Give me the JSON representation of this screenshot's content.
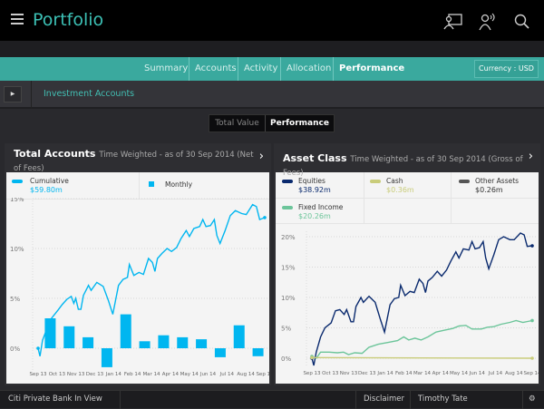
{
  "header": {
    "title": "Portfolio",
    "icons": [
      "menu-icon",
      "presentation-icon",
      "advisor-contact-icon",
      "search-icon"
    ]
  },
  "nav": {
    "tabs": [
      "Summary",
      "Accounts",
      "Activity",
      "Allocation",
      "Performance"
    ],
    "active": "Performance",
    "currency": "Currency : USD"
  },
  "accounts_bar": {
    "title": "Investment Accounts"
  },
  "view_toggle": {
    "options": [
      "Total Value",
      "Performance"
    ],
    "active": "Performance"
  },
  "colors": {
    "accent": "#3aa99e",
    "cumulative": "#00b6f0",
    "equities": "#0a2a6e",
    "cash": "#c9cc7a",
    "other": "#555555",
    "fixed_income": "#6cc59a"
  },
  "total_accounts": {
    "title": "Total Accounts",
    "subtitle": "Time Weighted - as of 30 Sep 2014 (Net of Fees)",
    "legend": [
      {
        "label": "Cumulative",
        "value": "$59.80m"
      },
      {
        "label": "Monthly"
      }
    ]
  },
  "asset_class": {
    "title": "Asset Class",
    "subtitle": "Time Weighted - as of 30 Sep 2014 (Gross of Fees)",
    "legend": [
      {
        "label": "Equities",
        "value": "$38.92m"
      },
      {
        "label": "Cash",
        "value": "$0.36m"
      },
      {
        "label": "Other Assets",
        "value": "$0.26m"
      },
      {
        "label": "Fixed Income",
        "value": "$20.26m"
      }
    ]
  },
  "chart_data": [
    {
      "type": "line+bar",
      "ylim": [
        -2.5,
        15.5
      ],
      "yticks": [
        "0%",
        "5%",
        "10%",
        "15%"
      ],
      "ytick_values": [
        0,
        5,
        10,
        15
      ],
      "grid": true,
      "xticks": [
        "Sep 13",
        "Oct 13",
        "Nov 13",
        "Dec 13",
        "Jan 14",
        "Feb 14",
        "Mar 14",
        "Apr 14",
        "May 14",
        "Jun 14",
        "Jul 14",
        "Aug 14",
        "Sep 14"
      ],
      "bars": {
        "name": "Monthly",
        "values": [
          3.0,
          2.2,
          1.1,
          -1.9,
          3.4,
          0.7,
          1.3,
          1.1,
          0.9,
          -0.9,
          2.3,
          -0.8
        ]
      },
      "series": [
        {
          "name": "Cumulative",
          "points": [
            [
              "2013-09-30",
              0
            ],
            [
              "2013-10-03",
              -0.8
            ],
            [
              "2013-10-07",
              0.8
            ],
            [
              "2013-10-14",
              2.0
            ],
            [
              "2013-10-21",
              3.0
            ],
            [
              "2013-10-31",
              3.8
            ],
            [
              "2013-11-07",
              4.4
            ],
            [
              "2013-11-14",
              4.9
            ],
            [
              "2013-11-21",
              5.2
            ],
            [
              "2013-11-25",
              4.5
            ],
            [
              "2013-11-28",
              5.0
            ],
            [
              "2013-12-02",
              3.9
            ],
            [
              "2013-12-06",
              3.9
            ],
            [
              "2013-12-10",
              5.3
            ],
            [
              "2013-12-18",
              6.3
            ],
            [
              "2013-12-22",
              5.8
            ],
            [
              "2013-12-31",
              6.6
            ],
            [
              "2014-01-10",
              6.2
            ],
            [
              "2014-01-18",
              4.8
            ],
            [
              "2014-01-25",
              3.4
            ],
            [
              "2014-02-03",
              6.3
            ],
            [
              "2014-02-10",
              6.9
            ],
            [
              "2014-02-17",
              7.1
            ],
            [
              "2014-02-20",
              8.4
            ],
            [
              "2014-02-27",
              7.3
            ],
            [
              "2014-03-07",
              7.6
            ],
            [
              "2014-03-14",
              7.4
            ],
            [
              "2014-03-22",
              9.0
            ],
            [
              "2014-03-28",
              8.6
            ],
            [
              "2014-04-01",
              7.7
            ],
            [
              "2014-04-05",
              9.0
            ],
            [
              "2014-04-12",
              9.5
            ],
            [
              "2014-04-20",
              10.0
            ],
            [
              "2014-04-27",
              9.7
            ],
            [
              "2014-05-05",
              10.1
            ],
            [
              "2014-05-12",
              11.0
            ],
            [
              "2014-05-20",
              11.8
            ],
            [
              "2014-05-25",
              11.2
            ],
            [
              "2014-06-01",
              12.0
            ],
            [
              "2014-06-10",
              12.2
            ],
            [
              "2014-06-15",
              12.9
            ],
            [
              "2014-06-20",
              12.2
            ],
            [
              "2014-06-27",
              12.3
            ],
            [
              "2014-07-03",
              12.9
            ],
            [
              "2014-07-07",
              11.3
            ],
            [
              "2014-07-12",
              10.5
            ],
            [
              "2014-07-20",
              11.8
            ],
            [
              "2014-07-28",
              13.3
            ],
            [
              "2014-08-05",
              13.8
            ],
            [
              "2014-08-15",
              13.5
            ],
            [
              "2014-08-22",
              13.4
            ],
            [
              "2014-09-01",
              14.4
            ],
            [
              "2014-09-07",
              14.2
            ],
            [
              "2014-09-12",
              12.9
            ],
            [
              "2014-09-20",
              13.1
            ]
          ]
        }
      ]
    },
    {
      "type": "line",
      "ylim": [
        -2,
        22
      ],
      "yticks": [
        "0%",
        "5%",
        "10%",
        "15%",
        "20%"
      ],
      "ytick_values": [
        0,
        5,
        10,
        15,
        20
      ],
      "grid": true,
      "xticks": [
        "Sep 13",
        "Oct 13",
        "Nov 13",
        "Dec 13",
        "Jan 14",
        "Feb 14",
        "Mar 14",
        "Apr 14",
        "May 14",
        "Jun 14",
        "Jul 14",
        "Aug 14",
        "Sep 14"
      ],
      "series": [
        {
          "name": "Equities",
          "points": [
            [
              "2013-09-30",
              0
            ],
            [
              "2013-10-03",
              -1.2
            ],
            [
              "2013-10-07",
              1.0
            ],
            [
              "2013-10-14",
              3.5
            ],
            [
              "2013-10-21",
              5.0
            ],
            [
              "2013-10-31",
              5.8
            ],
            [
              "2013-11-07",
              7.8
            ],
            [
              "2013-11-14",
              8.0
            ],
            [
              "2013-11-21",
              7.2
            ],
            [
              "2013-11-25",
              8.0
            ],
            [
              "2013-12-02",
              6.0
            ],
            [
              "2013-12-06",
              6.0
            ],
            [
              "2013-12-10",
              8.5
            ],
            [
              "2013-12-18",
              10.0
            ],
            [
              "2013-12-22",
              9.2
            ],
            [
              "2013-12-31",
              10.2
            ],
            [
              "2014-01-10",
              9.2
            ],
            [
              "2014-01-18",
              6.5
            ],
            [
              "2014-01-25",
              4.3
            ],
            [
              "2014-02-03",
              8.8
            ],
            [
              "2014-02-10",
              9.8
            ],
            [
              "2014-02-17",
              10.0
            ],
            [
              "2014-02-20",
              12.0
            ],
            [
              "2014-02-27",
              10.3
            ],
            [
              "2014-03-07",
              11.0
            ],
            [
              "2014-03-14",
              10.8
            ],
            [
              "2014-03-22",
              13.0
            ],
            [
              "2014-03-28",
              12.3
            ],
            [
              "2014-04-01",
              10.8
            ],
            [
              "2014-04-05",
              12.7
            ],
            [
              "2014-04-12",
              13.3
            ],
            [
              "2014-04-20",
              14.3
            ],
            [
              "2014-04-27",
              13.5
            ],
            [
              "2014-05-05",
              14.5
            ],
            [
              "2014-05-12",
              16.0
            ],
            [
              "2014-05-20",
              17.5
            ],
            [
              "2014-05-25",
              16.5
            ],
            [
              "2014-06-01",
              18.0
            ],
            [
              "2014-06-10",
              17.8
            ],
            [
              "2014-06-15",
              19.2
            ],
            [
              "2014-06-20",
              18.0
            ],
            [
              "2014-06-27",
              18.2
            ],
            [
              "2014-07-03",
              19.2
            ],
            [
              "2014-07-07",
              16.5
            ],
            [
              "2014-07-12",
              14.7
            ],
            [
              "2014-07-20",
              17.0
            ],
            [
              "2014-07-28",
              19.5
            ],
            [
              "2014-08-05",
              20.0
            ],
            [
              "2014-08-15",
              19.5
            ],
            [
              "2014-08-22",
              19.5
            ],
            [
              "2014-09-01",
              20.6
            ],
            [
              "2014-09-07",
              20.3
            ],
            [
              "2014-09-12",
              18.4
            ],
            [
              "2014-09-20",
              18.5
            ]
          ]
        },
        {
          "name": "Fixed Income",
          "points": [
            [
              "2013-09-30",
              0.3
            ],
            [
              "2013-10-07",
              0
            ],
            [
              "2013-10-14",
              1.0
            ],
            [
              "2013-10-28",
              1.0
            ],
            [
              "2013-11-10",
              0.9
            ],
            [
              "2013-11-20",
              1.0
            ],
            [
              "2013-11-28",
              0.6
            ],
            [
              "2013-12-08",
              0.9
            ],
            [
              "2013-12-20",
              0.8
            ],
            [
              "2013-12-31",
              1.8
            ],
            [
              "2014-01-15",
              2.3
            ],
            [
              "2014-01-31",
              2.6
            ],
            [
              "2014-02-15",
              2.9
            ],
            [
              "2014-02-25",
              3.5
            ],
            [
              "2014-03-05",
              3.0
            ],
            [
              "2014-03-15",
              3.3
            ],
            [
              "2014-03-25",
              3.0
            ],
            [
              "2014-04-05",
              3.5
            ],
            [
              "2014-04-18",
              4.3
            ],
            [
              "2014-05-01",
              4.6
            ],
            [
              "2014-05-15",
              4.9
            ],
            [
              "2014-05-25",
              5.3
            ],
            [
              "2014-06-05",
              5.4
            ],
            [
              "2014-06-15",
              4.8
            ],
            [
              "2014-06-30",
              4.8
            ],
            [
              "2014-07-10",
              5.1
            ],
            [
              "2014-07-20",
              5.2
            ],
            [
              "2014-08-01",
              5.6
            ],
            [
              "2014-08-15",
              5.9
            ],
            [
              "2014-08-25",
              6.2
            ],
            [
              "2014-09-05",
              5.9
            ],
            [
              "2014-09-20",
              6.2
            ]
          ]
        },
        {
          "name": "Cash",
          "points": [
            [
              "2013-09-30",
              0.1
            ],
            [
              "2014-09-20",
              0
            ]
          ]
        }
      ]
    }
  ],
  "footer": {
    "brand": "Citi Private Bank In View",
    "disclaimer": "Disclaimer",
    "user": "Timothy Tate"
  }
}
